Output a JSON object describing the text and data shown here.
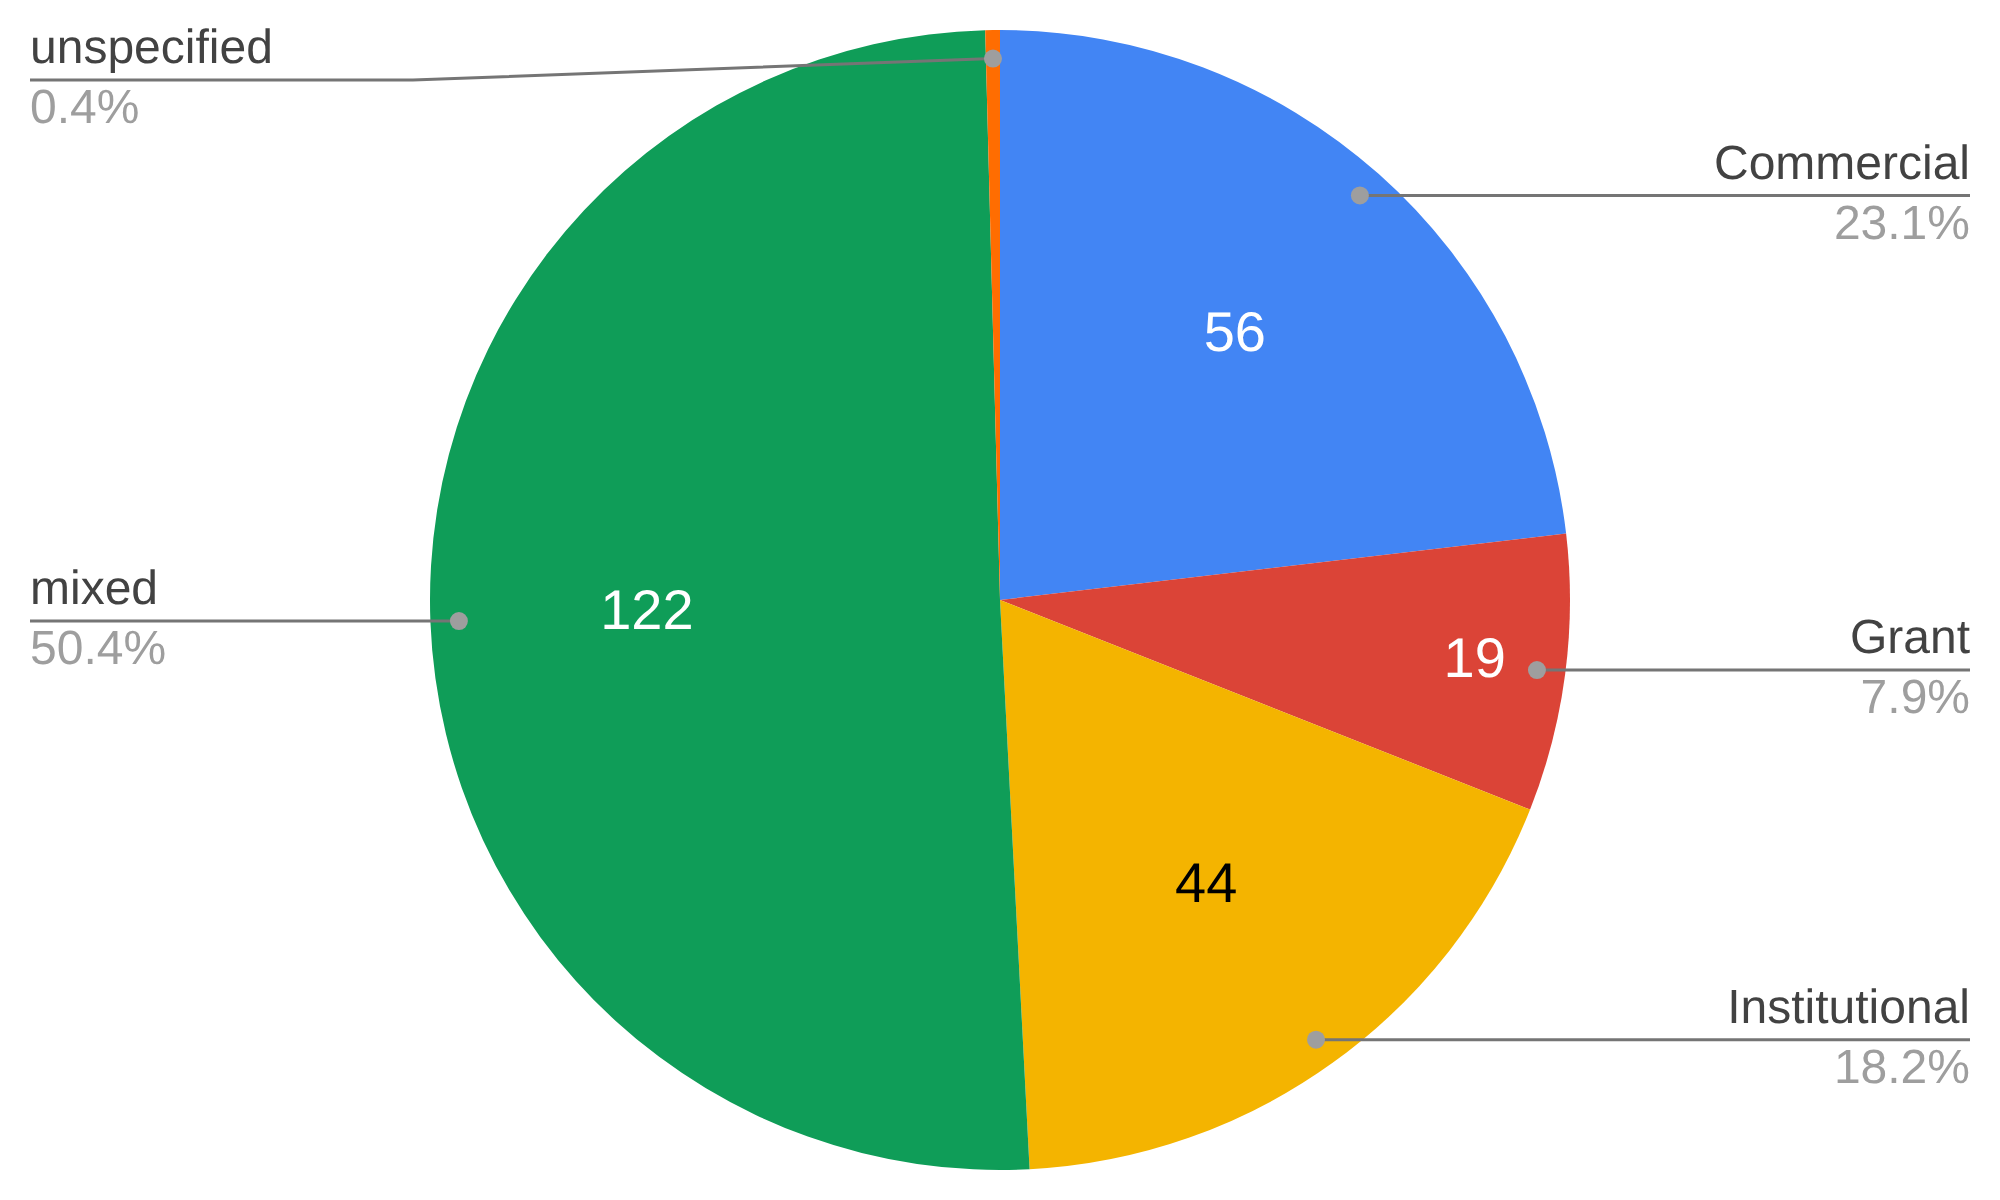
{
  "chart_data": {
    "type": "pie",
    "categories": [
      "Commercial",
      "Grant",
      "Institutional",
      "mixed",
      "unspecified"
    ],
    "values": [
      56,
      19,
      44,
      122,
      1
    ],
    "colors": [
      "#4285f4",
      "#db4437",
      "#f4b400",
      "#0f9d58",
      "#ff6d01"
    ],
    "value_labels": [
      "56",
      "19",
      "44",
      "122",
      null
    ],
    "annotations": [
      "23.1%",
      "7.9%",
      "18.2%",
      "50.4%",
      "0.4%"
    ],
    "legend": false
  }
}
